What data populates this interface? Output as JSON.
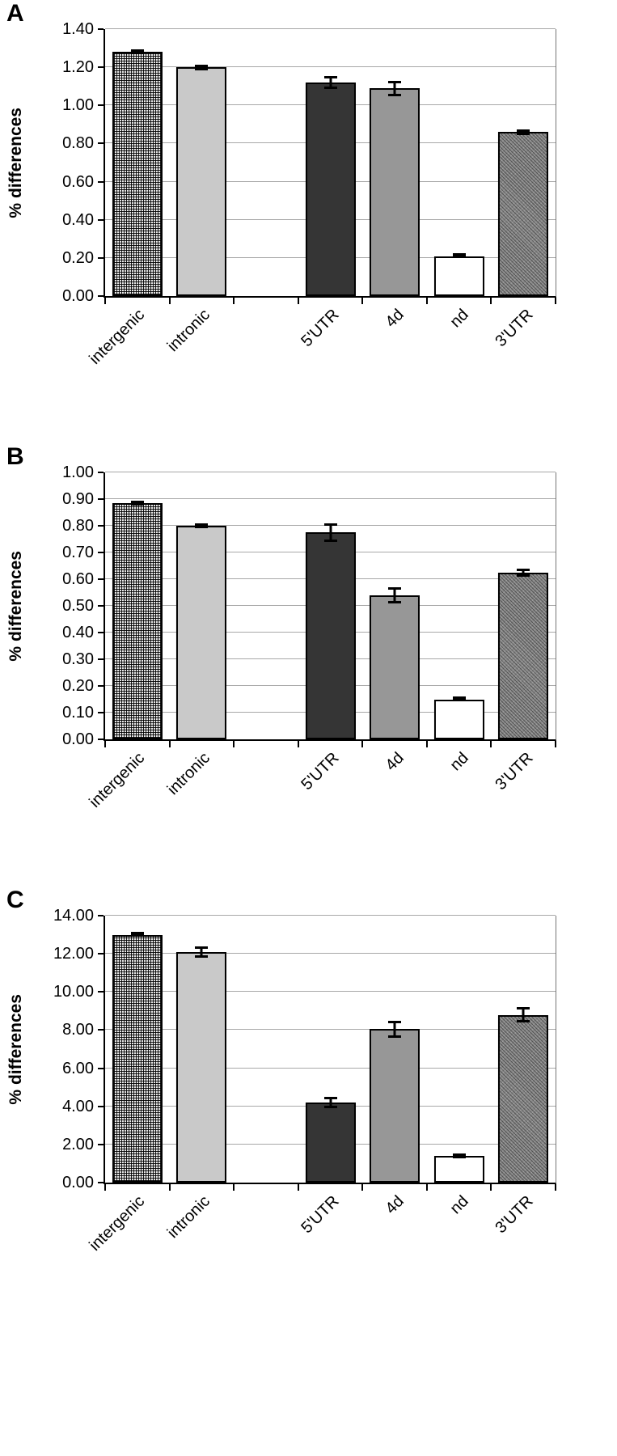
{
  "page": {
    "background": "#ffffff"
  },
  "panels": [
    {
      "letter": "A",
      "ylabel": "% differences"
    },
    {
      "letter": "B",
      "ylabel": "% differences"
    },
    {
      "letter": "C",
      "ylabel": "% differences"
    }
  ],
  "bar_colors": {
    "intergenic": "checkerboard-mesh-on-#e6e6e6",
    "intronic": "#c9c9c9",
    "5'UTR": "#353535",
    "4d": "#979797",
    "nd": "#ffffff",
    "3'UTR": "#8a8a8a"
  },
  "chart_data": [
    {
      "type": "bar",
      "panel": "A",
      "title": "",
      "xlabel": "",
      "ylabel": "% differences",
      "categories": [
        "intergenic",
        "intronic",
        "5'UTR",
        "4d",
        "nd",
        "3'UTR"
      ],
      "values": [
        1.28,
        1.2,
        1.12,
        1.09,
        0.21,
        0.86
      ],
      "errors": [
        0.01,
        0.015,
        0.035,
        0.04,
        0.012,
        0.015
      ],
      "slots": [
        0,
        1,
        3,
        4,
        5,
        6
      ],
      "total_slots": 7,
      "ylim": [
        0,
        1.4
      ],
      "ytick_step": 0.2,
      "decimals": 2,
      "grid": true,
      "legend_position": "none",
      "patterns": [
        "checker",
        "lightgray",
        "darkgray",
        "midgray",
        "white",
        "hatch"
      ]
    },
    {
      "type": "bar",
      "panel": "B",
      "title": "",
      "xlabel": "",
      "ylabel": "% differences",
      "categories": [
        "intergenic",
        "intronic",
        "5'UTR",
        "4d",
        "nd",
        "3'UTR"
      ],
      "values": [
        0.885,
        0.8,
        0.775,
        0.54,
        0.15,
        0.625
      ],
      "errors": [
        0.01,
        0.008,
        0.035,
        0.03,
        0.008,
        0.015
      ],
      "slots": [
        0,
        1,
        3,
        4,
        5,
        6
      ],
      "total_slots": 7,
      "ylim": [
        0,
        1.0
      ],
      "ytick_step": 0.1,
      "decimals": 2,
      "grid": true,
      "legend_position": "none",
      "patterns": [
        "checker",
        "lightgray",
        "darkgray",
        "midgray",
        "white",
        "hatch"
      ]
    },
    {
      "type": "bar",
      "panel": "C",
      "title": "",
      "xlabel": "",
      "ylabel": "% differences",
      "categories": [
        "intergenic",
        "intronic",
        "5'UTR",
        "4d",
        "nd",
        "3'UTR"
      ],
      "values": [
        13.0,
        12.1,
        4.2,
        8.05,
        1.4,
        8.8
      ],
      "errors": [
        0.12,
        0.3,
        0.3,
        0.45,
        0.12,
        0.4
      ],
      "slots": [
        0,
        1,
        3,
        4,
        5,
        6
      ],
      "total_slots": 7,
      "ylim": [
        0,
        14.0
      ],
      "ytick_step": 2.0,
      "decimals": 2,
      "grid": true,
      "legend_position": "none",
      "patterns": [
        "checker",
        "lightgray",
        "darkgray",
        "midgray",
        "white",
        "hatch"
      ]
    }
  ]
}
